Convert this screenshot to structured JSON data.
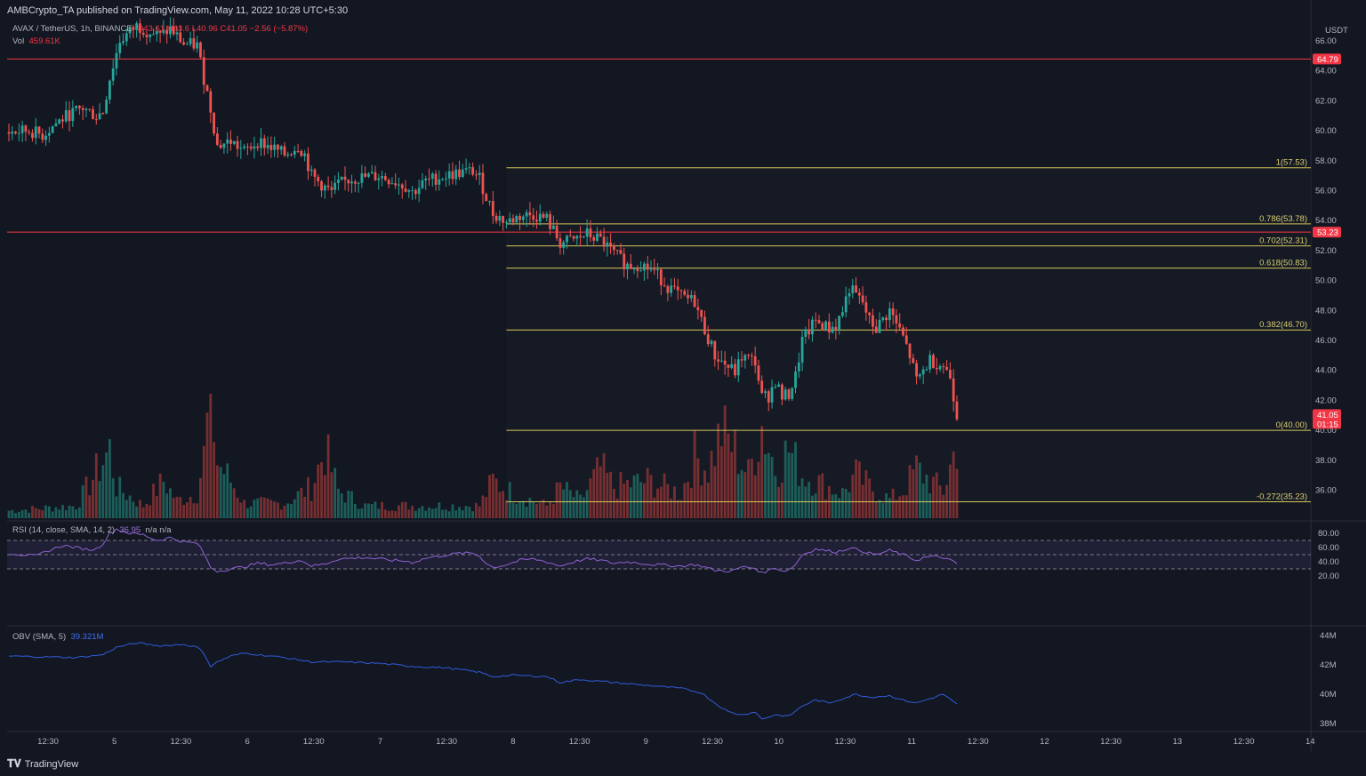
{
  "header": {
    "publisher_line": "AMBCrypto_TA published on TradingView.com, May 11, 2022 10:28 UTC+5:30",
    "symbol": "AVAX / TetherUS, 1h, BINANCE",
    "ohlc": "O43.61  H43.6  L40.96  C41.05  −2.56 (−5.87%)",
    "vol_label": "Vol",
    "vol_value": "459.61K"
  },
  "footer": {
    "brand": "TradingView"
  },
  "price_axis": {
    "currency": "USDT",
    "ticks": [
      "66.00",
      "64.00",
      "62.00",
      "60.00",
      "58.00",
      "56.00",
      "54.00",
      "52.00",
      "50.00",
      "48.00",
      "46.00",
      "44.00",
      "42.00",
      "40.00",
      "38.00",
      "36.00"
    ],
    "labels": [
      {
        "text": "64.79",
        "value": 64.79,
        "color": "#f23645"
      },
      {
        "text": "53.23",
        "value": 53.23,
        "color": "#f23645"
      },
      {
        "text": "41.05",
        "value": 41.05,
        "color": "#f23645"
      }
    ],
    "countdown": "01:15"
  },
  "rsi": {
    "label": "RSI (14, close, SMA, 14, 2)",
    "value": "36.95",
    "extra": "n/a  n/a",
    "ticks": [
      "80.00",
      "60.00",
      "40.00",
      "20.00"
    ]
  },
  "obv": {
    "label": "OBV (SMA, 5)",
    "value": "39.321M",
    "ticks": [
      "44M",
      "42M",
      "40M",
      "38M"
    ]
  },
  "time_axis": {
    "ticks": [
      "12:30",
      "5",
      "12:30",
      "6",
      "12:30",
      "7",
      "12:30",
      "8",
      "12:30",
      "9",
      "12:30",
      "10",
      "12:30",
      "11",
      "12:30",
      "12",
      "12:30",
      "13",
      "12:30",
      "14"
    ]
  },
  "colors": {
    "up": "#26a69a",
    "down": "#ef5350",
    "fib": "#d4c65a",
    "resistance": "#f23645",
    "rsi": "#8e63d1",
    "obv": "#2f5bd8"
  },
  "chart_data": {
    "type": "candlestick",
    "title": "AVAX / TetherUS, 1h, BINANCE",
    "xlabel": "",
    "ylabel": "USDT",
    "ylim": [
      35,
      67
    ],
    "horizontal_levels": [
      {
        "name": "resistance-64.79",
        "value": 64.79
      },
      {
        "name": "support-53.23",
        "value": 53.23
      }
    ],
    "fib_levels": [
      {
        "label": "1(57.53)",
        "value": 57.53
      },
      {
        "label": "0.786(53.78)",
        "value": 53.78
      },
      {
        "label": "0.702(52.31)",
        "value": 52.31
      },
      {
        "label": "0.618(50.83)",
        "value": 50.83
      },
      {
        "label": "0.382(46.70)",
        "value": 46.7
      },
      {
        "label": "0(40.00)",
        "value": 40.0
      },
      {
        "label": "-0.272(35.23)",
        "value": 35.23
      }
    ],
    "price_waypoints": [
      [
        0,
        59.9
      ],
      [
        6,
        60.0
      ],
      [
        10,
        59.7
      ],
      [
        14,
        60.5
      ],
      [
        18,
        61.1
      ],
      [
        22,
        61.5
      ],
      [
        26,
        61.0
      ],
      [
        28,
        61.3
      ],
      [
        30,
        63.5
      ],
      [
        33,
        66.0
      ],
      [
        38,
        67.0
      ],
      [
        45,
        66.3
      ],
      [
        48,
        66.8
      ],
      [
        52,
        65.8
      ],
      [
        56,
        65.7
      ],
      [
        58,
        63.5
      ],
      [
        60,
        61.5
      ],
      [
        62,
        59.0
      ],
      [
        66,
        59.3
      ],
      [
        70,
        58.6
      ],
      [
        74,
        59.3
      ],
      [
        78,
        58.9
      ],
      [
        82,
        58.4
      ],
      [
        86,
        59.0
      ],
      [
        88,
        58.4
      ],
      [
        90,
        57.0
      ],
      [
        94,
        56.2
      ],
      [
        96,
        55.9
      ],
      [
        98,
        56.4
      ],
      [
        102,
        56.8
      ],
      [
        106,
        56.9
      ],
      [
        110,
        57.0
      ],
      [
        114,
        56.7
      ],
      [
        118,
        56.3
      ],
      [
        120,
        55.9
      ],
      [
        124,
        56.6
      ],
      [
        128,
        56.9
      ],
      [
        134,
        57.2
      ],
      [
        138,
        57.3
      ],
      [
        140,
        56.8
      ],
      [
        142,
        55.6
      ],
      [
        144,
        54.5
      ],
      [
        148,
        53.9
      ],
      [
        152,
        54.3
      ],
      [
        156,
        54.4
      ],
      [
        160,
        54.1
      ],
      [
        164,
        52.5
      ],
      [
        168,
        52.7
      ],
      [
        172,
        53.1
      ],
      [
        176,
        52.7
      ],
      [
        180,
        51.8
      ],
      [
        184,
        51.0
      ],
      [
        188,
        51.1
      ],
      [
        192,
        50.6
      ],
      [
        196,
        49.6
      ],
      [
        200,
        48.9
      ],
      [
        204,
        48.6
      ],
      [
        206,
        47.3
      ],
      [
        210,
        45.0
      ],
      [
        214,
        44.2
      ],
      [
        216,
        43.9
      ],
      [
        218,
        44.9
      ],
      [
        222,
        44.6
      ],
      [
        224,
        42.2
      ],
      [
        226,
        42.3
      ],
      [
        228,
        43.3
      ],
      [
        230,
        42.2
      ],
      [
        232,
        42.4
      ],
      [
        234,
        43.6
      ],
      [
        236,
        46.0
      ],
      [
        240,
        47.3
      ],
      [
        244,
        46.8
      ],
      [
        246,
        47.0
      ],
      [
        248,
        48.0
      ],
      [
        250,
        49.5
      ],
      [
        254,
        48.5
      ],
      [
        256,
        47.3
      ],
      [
        258,
        46.8
      ],
      [
        262,
        48.0
      ],
      [
        266,
        46.2
      ],
      [
        268,
        45.0
      ],
      [
        270,
        43.3
      ],
      [
        272,
        44.0
      ],
      [
        274,
        44.7
      ],
      [
        276,
        44.5
      ],
      [
        278,
        44.3
      ],
      [
        280,
        43.6
      ],
      [
        282,
        41.05
      ]
    ],
    "rsi_waypoints": [
      [
        0,
        52
      ],
      [
        4,
        50
      ],
      [
        8,
        48
      ],
      [
        12,
        56
      ],
      [
        16,
        63
      ],
      [
        20,
        60
      ],
      [
        24,
        57
      ],
      [
        26,
        58
      ],
      [
        28,
        66
      ],
      [
        30,
        80
      ],
      [
        32,
        86
      ],
      [
        36,
        80
      ],
      [
        40,
        78
      ],
      [
        44,
        70
      ],
      [
        48,
        74
      ],
      [
        52,
        68
      ],
      [
        56,
        66
      ],
      [
        58,
        52
      ],
      [
        60,
        32
      ],
      [
        62,
        27
      ],
      [
        66,
        30
      ],
      [
        70,
        33
      ],
      [
        74,
        38
      ],
      [
        78,
        36
      ],
      [
        82,
        38
      ],
      [
        86,
        42
      ],
      [
        88,
        40
      ],
      [
        90,
        34
      ],
      [
        94,
        37
      ],
      [
        98,
        44
      ],
      [
        102,
        45
      ],
      [
        106,
        46
      ],
      [
        110,
        44
      ],
      [
        114,
        42
      ],
      [
        118,
        41
      ],
      [
        120,
        39
      ],
      [
        124,
        45
      ],
      [
        128,
        48
      ],
      [
        134,
        52
      ],
      [
        138,
        52
      ],
      [
        140,
        48
      ],
      [
        142,
        38
      ],
      [
        144,
        32
      ],
      [
        148,
        36
      ],
      [
        152,
        42
      ],
      [
        156,
        44
      ],
      [
        160,
        40
      ],
      [
        164,
        34
      ],
      [
        168,
        40
      ],
      [
        172,
        44
      ],
      [
        176,
        42
      ],
      [
        180,
        38
      ],
      [
        184,
        40
      ],
      [
        188,
        38
      ],
      [
        192,
        36
      ],
      [
        196,
        35
      ],
      [
        200,
        34
      ],
      [
        204,
        36
      ],
      [
        206,
        34
      ],
      [
        210,
        28
      ],
      [
        214,
        27
      ],
      [
        216,
        28
      ],
      [
        218,
        33
      ],
      [
        222,
        31
      ],
      [
        224,
        24
      ],
      [
        226,
        28
      ],
      [
        228,
        32
      ],
      [
        230,
        27
      ],
      [
        232,
        29
      ],
      [
        234,
        36
      ],
      [
        236,
        50
      ],
      [
        240,
        58
      ],
      [
        244,
        55
      ],
      [
        246,
        54
      ],
      [
        248,
        56
      ],
      [
        250,
        60
      ],
      [
        254,
        55
      ],
      [
        256,
        52
      ],
      [
        258,
        50
      ],
      [
        262,
        56
      ],
      [
        266,
        50
      ],
      [
        268,
        46
      ],
      [
        270,
        42
      ],
      [
        272,
        46
      ],
      [
        274,
        47
      ],
      [
        276,
        47
      ],
      [
        278,
        46
      ],
      [
        280,
        42
      ],
      [
        282,
        37
      ]
    ],
    "obv_waypoints": [
      [
        0,
        42.6
      ],
      [
        20,
        42.5
      ],
      [
        28,
        42.7
      ],
      [
        32,
        43.2
      ],
      [
        38,
        43.5
      ],
      [
        45,
        43.3
      ],
      [
        52,
        43.4
      ],
      [
        56,
        43.2
      ],
      [
        58,
        42.8
      ],
      [
        60,
        41.9
      ],
      [
        62,
        42.2
      ],
      [
        66,
        42.6
      ],
      [
        70,
        42.8
      ],
      [
        74,
        42.7
      ],
      [
        82,
        42.5
      ],
      [
        90,
        42.2
      ],
      [
        100,
        42.2
      ],
      [
        110,
        42.1
      ],
      [
        120,
        41.9
      ],
      [
        130,
        41.8
      ],
      [
        140,
        41.5
      ],
      [
        144,
        41.2
      ],
      [
        150,
        41.3
      ],
      [
        160,
        41.2
      ],
      [
        164,
        40.8
      ],
      [
        170,
        41.0
      ],
      [
        180,
        40.8
      ],
      [
        190,
        40.6
      ],
      [
        200,
        40.4
      ],
      [
        206,
        40.1
      ],
      [
        210,
        39.4
      ],
      [
        214,
        38.8
      ],
      [
        218,
        38.6
      ],
      [
        222,
        38.8
      ],
      [
        224,
        38.3
      ],
      [
        228,
        38.6
      ],
      [
        232,
        38.5
      ],
      [
        236,
        39.2
      ],
      [
        240,
        39.6
      ],
      [
        244,
        39.4
      ],
      [
        248,
        39.7
      ],
      [
        252,
        40.0
      ],
      [
        256,
        39.8
      ],
      [
        262,
        39.9
      ],
      [
        266,
        39.6
      ],
      [
        270,
        39.4
      ],
      [
        274,
        39.7
      ],
      [
        278,
        40.0
      ],
      [
        282,
        39.3
      ]
    ],
    "volume_waypoints": [
      [
        0,
        0.06
      ],
      [
        20,
        0.1
      ],
      [
        30,
        0.55
      ],
      [
        32,
        0.25
      ],
      [
        40,
        0.1
      ],
      [
        46,
        0.3
      ],
      [
        50,
        0.14
      ],
      [
        56,
        0.2
      ],
      [
        58,
        0.5
      ],
      [
        60,
        1.0
      ],
      [
        62,
        0.45
      ],
      [
        66,
        0.3
      ],
      [
        70,
        0.12
      ],
      [
        82,
        0.12
      ],
      [
        90,
        0.25
      ],
      [
        94,
        0.55
      ],
      [
        98,
        0.22
      ],
      [
        106,
        0.1
      ],
      [
        120,
        0.1
      ],
      [
        140,
        0.1
      ],
      [
        144,
        0.3
      ],
      [
        150,
        0.2
      ],
      [
        160,
        0.1
      ],
      [
        164,
        0.25
      ],
      [
        170,
        0.14
      ],
      [
        176,
        0.4
      ],
      [
        180,
        0.25
      ],
      [
        190,
        0.3
      ],
      [
        200,
        0.2
      ],
      [
        204,
        0.5
      ],
      [
        208,
        0.4
      ],
      [
        212,
        0.7
      ],
      [
        216,
        0.55
      ],
      [
        220,
        0.35
      ],
      [
        224,
        0.75
      ],
      [
        228,
        0.4
      ],
      [
        232,
        0.55
      ],
      [
        236,
        0.35
      ],
      [
        240,
        0.3
      ],
      [
        248,
        0.2
      ],
      [
        252,
        0.35
      ],
      [
        256,
        0.25
      ],
      [
        262,
        0.15
      ],
      [
        266,
        0.22
      ],
      [
        270,
        0.4
      ],
      [
        274,
        0.3
      ],
      [
        278,
        0.22
      ],
      [
        282,
        0.6
      ]
    ]
  }
}
